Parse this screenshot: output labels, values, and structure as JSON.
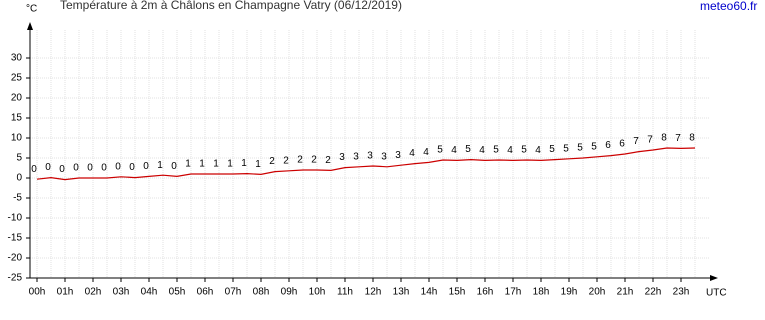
{
  "chart_data": {
    "type": "line",
    "title": "Température à 2m à Châlons en Champagne Vatry (06/12/2019)",
    "source": "meteo60.fr",
    "y_label": "°C",
    "x_label": "UTC",
    "categories": [
      "00h",
      null,
      "01h",
      null,
      "02h",
      null,
      "03h",
      null,
      "04h",
      null,
      "05h",
      null,
      "06h",
      null,
      "07h",
      null,
      "08h",
      null,
      "09h",
      null,
      "10h",
      null,
      "11h",
      null,
      "12h",
      null,
      "13h",
      null,
      "14h",
      null,
      "15h",
      null,
      "16h",
      null,
      "17h",
      null,
      "18h",
      null,
      "19h",
      null,
      "20h",
      null,
      "21h",
      null,
      "22h",
      null,
      "23h",
      null
    ],
    "series": [
      {
        "name": "Température",
        "color": "#cc0000",
        "values": [
          -0.3,
          0.1,
          -0.4,
          0,
          0,
          0,
          0.3,
          0.1,
          0.4,
          0.7,
          0.4,
          1,
          1,
          1,
          1,
          1.1,
          0.9,
          1.6,
          1.8,
          2,
          2,
          1.9,
          2.6,
          2.8,
          3,
          2.8,
          3.2,
          3.6,
          3.9,
          4.5,
          4.4,
          4.6,
          4.4,
          4.5,
          4.4,
          4.5,
          4.4,
          4.6,
          4.8,
          5,
          5.3,
          5.6,
          6,
          6.6,
          7,
          7.5,
          7.4,
          7.5
        ],
        "value_labels": [
          "0",
          "0",
          "0",
          "0",
          "0",
          "0",
          "0",
          "0",
          "0",
          "1",
          "0",
          "1",
          "1",
          "1",
          "1",
          "1",
          "1",
          "2",
          "2",
          "2",
          "2",
          "2",
          "3",
          "3",
          "3",
          "3",
          "3",
          "4",
          "4",
          "5",
          "4",
          "5",
          "4",
          "5",
          "4",
          "5",
          "4",
          "5",
          "5",
          "5",
          "5",
          "6",
          "6",
          "7",
          "7",
          "8",
          "7",
          "8"
        ]
      }
    ],
    "ylim": [
      -25,
      30
    ],
    "yticks": [
      -25,
      -20,
      -15,
      -10,
      -5,
      0,
      5,
      10,
      15,
      20,
      25,
      30
    ],
    "grid": true
  }
}
